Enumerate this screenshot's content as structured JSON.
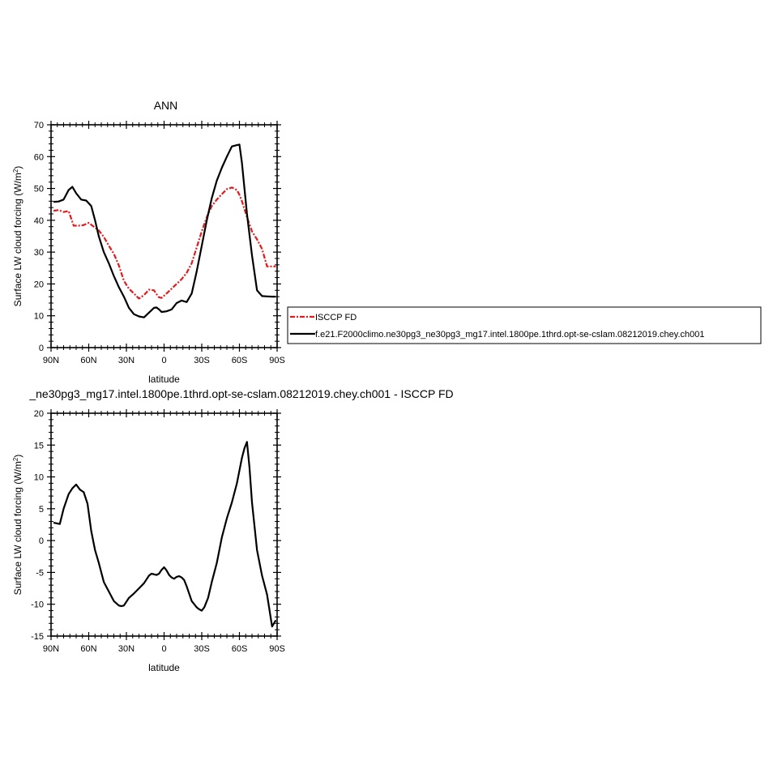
{
  "chart_data": [
    {
      "type": "line",
      "title": "ANN",
      "xlabel": "latitude",
      "ylabel": "Surface LW cloud forcing (W/m²)",
      "ylim": [
        0,
        70
      ],
      "yticks": [
        0,
        10,
        20,
        30,
        40,
        50,
        60,
        70
      ],
      "xlim": [
        -90,
        90
      ],
      "xticks": [
        -90,
        -60,
        -30,
        0,
        30,
        60,
        90
      ],
      "xticklabels": [
        "90N",
        "60N",
        "30N",
        "0",
        "30S",
        "60S",
        "90S"
      ],
      "legend_position": "right",
      "series": [
        {
          "name": "ISCCP FD",
          "color": "#e41a1c",
          "dash": true,
          "x": [
            -88,
            -84,
            -80,
            -76,
            -72,
            -68,
            -64,
            -60,
            -56,
            -52,
            -48,
            -44,
            -40,
            -36,
            -32,
            -28,
            -24,
            -20,
            -16,
            -12,
            -8,
            -6,
            -4,
            -2,
            0,
            2,
            6,
            10,
            14,
            18,
            22,
            26,
            30,
            34,
            38,
            42,
            46,
            50,
            54,
            58,
            60,
            62,
            66,
            70,
            74,
            78,
            82,
            86,
            89
          ],
          "y": [
            43,
            43.2,
            42.6,
            42.9,
            38.3,
            38.3,
            38.5,
            39.2,
            38.0,
            36.8,
            34.8,
            32.0,
            29.5,
            25.8,
            21.0,
            18.5,
            17.0,
            15.4,
            16.5,
            18.2,
            18.0,
            16.8,
            15.8,
            15.6,
            16.3,
            17.0,
            18.5,
            20.0,
            21.5,
            23.5,
            26.5,
            31.5,
            36.5,
            41.0,
            44.5,
            46.5,
            48.2,
            49.8,
            50.3,
            49.5,
            48.0,
            46.0,
            41.0,
            36.5,
            34.0,
            31.0,
            25.5,
            25.5,
            25.5
          ]
        },
        {
          "name": "f.e21.F2000climo.ne30pg3_ne30pg3_mg17.intel.1800pe.1thrd.opt-se-cslam.08212019.chey.ch001",
          "color": "#000000",
          "dash": false,
          "x": [
            -88,
            -84,
            -80,
            -76,
            -73,
            -70,
            -66,
            -62,
            -58,
            -55,
            -52,
            -48,
            -44,
            -40,
            -36,
            -32,
            -28,
            -24,
            -20,
            -16,
            -12,
            -8,
            -6,
            -4,
            -2,
            0,
            2,
            6,
            10,
            14,
            18,
            22,
            26,
            30,
            34,
            38,
            42,
            46,
            50,
            54,
            58,
            60,
            62,
            64,
            66,
            70,
            74,
            78,
            82,
            86,
            89
          ],
          "y": [
            45.8,
            45.9,
            46.5,
            49.5,
            50.5,
            48.5,
            46.5,
            46.2,
            44.5,
            40.0,
            35.0,
            30.0,
            26.5,
            22.5,
            19.0,
            16.0,
            12.5,
            10.5,
            9.8,
            9.5,
            11.0,
            12.5,
            12.6,
            12.0,
            11.2,
            11.3,
            11.4,
            12.0,
            14.0,
            14.8,
            14.3,
            17.0,
            24.0,
            32.0,
            40.0,
            47.0,
            52.5,
            56.5,
            60.0,
            63.2,
            63.6,
            63.8,
            58.0,
            50.0,
            42.0,
            29.0,
            18.0,
            16.2,
            16.1,
            16.0,
            16.0
          ]
        }
      ]
    },
    {
      "type": "line",
      "title": "_ne30pg3_mg17.intel.1800pe.1thrd.opt-se-cslam.08212019.chey.ch001 - ISCCP FD",
      "xlabel": "latitude",
      "ylabel": "Surface LW cloud forcing (W/m²)",
      "ylim": [
        -15,
        20
      ],
      "yticks": [
        -15,
        -10,
        -5,
        0,
        5,
        10,
        15,
        20
      ],
      "xlim": [
        -90,
        90
      ],
      "xticks": [
        -90,
        -60,
        -30,
        0,
        30,
        60,
        90
      ],
      "xticklabels": [
        "90N",
        "60N",
        "30N",
        "0",
        "30S",
        "60S",
        "90S"
      ],
      "series": [
        {
          "name": "",
          "color": "#000000",
          "dash": false,
          "x": [
            -88,
            -83,
            -80,
            -76,
            -73,
            -70,
            -67,
            -64,
            -61,
            -58,
            -55,
            -52,
            -48,
            -44,
            -40,
            -36,
            -34,
            -32,
            -28,
            -24,
            -20,
            -16,
            -12,
            -10,
            -8,
            -6,
            -4,
            -2,
            0,
            2,
            4,
            6,
            8,
            10,
            12,
            14,
            16,
            18,
            22,
            26,
            28,
            30,
            32,
            35,
            38,
            42,
            46,
            50,
            54,
            58,
            60,
            62,
            64,
            66,
            68,
            70,
            74,
            78,
            82,
            84,
            86,
            89
          ],
          "y": [
            2.8,
            2.6,
            5.0,
            7.3,
            8.2,
            8.8,
            8.0,
            7.6,
            5.8,
            1.5,
            -1.5,
            -3.5,
            -6.5,
            -8.0,
            -9.5,
            -10.2,
            -10.3,
            -10.2,
            -9.0,
            -8.3,
            -7.5,
            -6.7,
            -5.5,
            -5.2,
            -5.3,
            -5.4,
            -5.2,
            -4.6,
            -4.2,
            -4.7,
            -5.4,
            -5.8,
            -6.0,
            -5.7,
            -5.6,
            -5.8,
            -6.2,
            -7.2,
            -9.5,
            -10.5,
            -10.8,
            -11.0,
            -10.5,
            -9.0,
            -6.5,
            -3.5,
            0.5,
            3.5,
            6.0,
            9.0,
            11.0,
            13.0,
            14.5,
            15.5,
            11.5,
            6.0,
            -1.5,
            -5.5,
            -8.5,
            -11.0,
            -13.5,
            -12.5
          ]
        }
      ]
    }
  ]
}
